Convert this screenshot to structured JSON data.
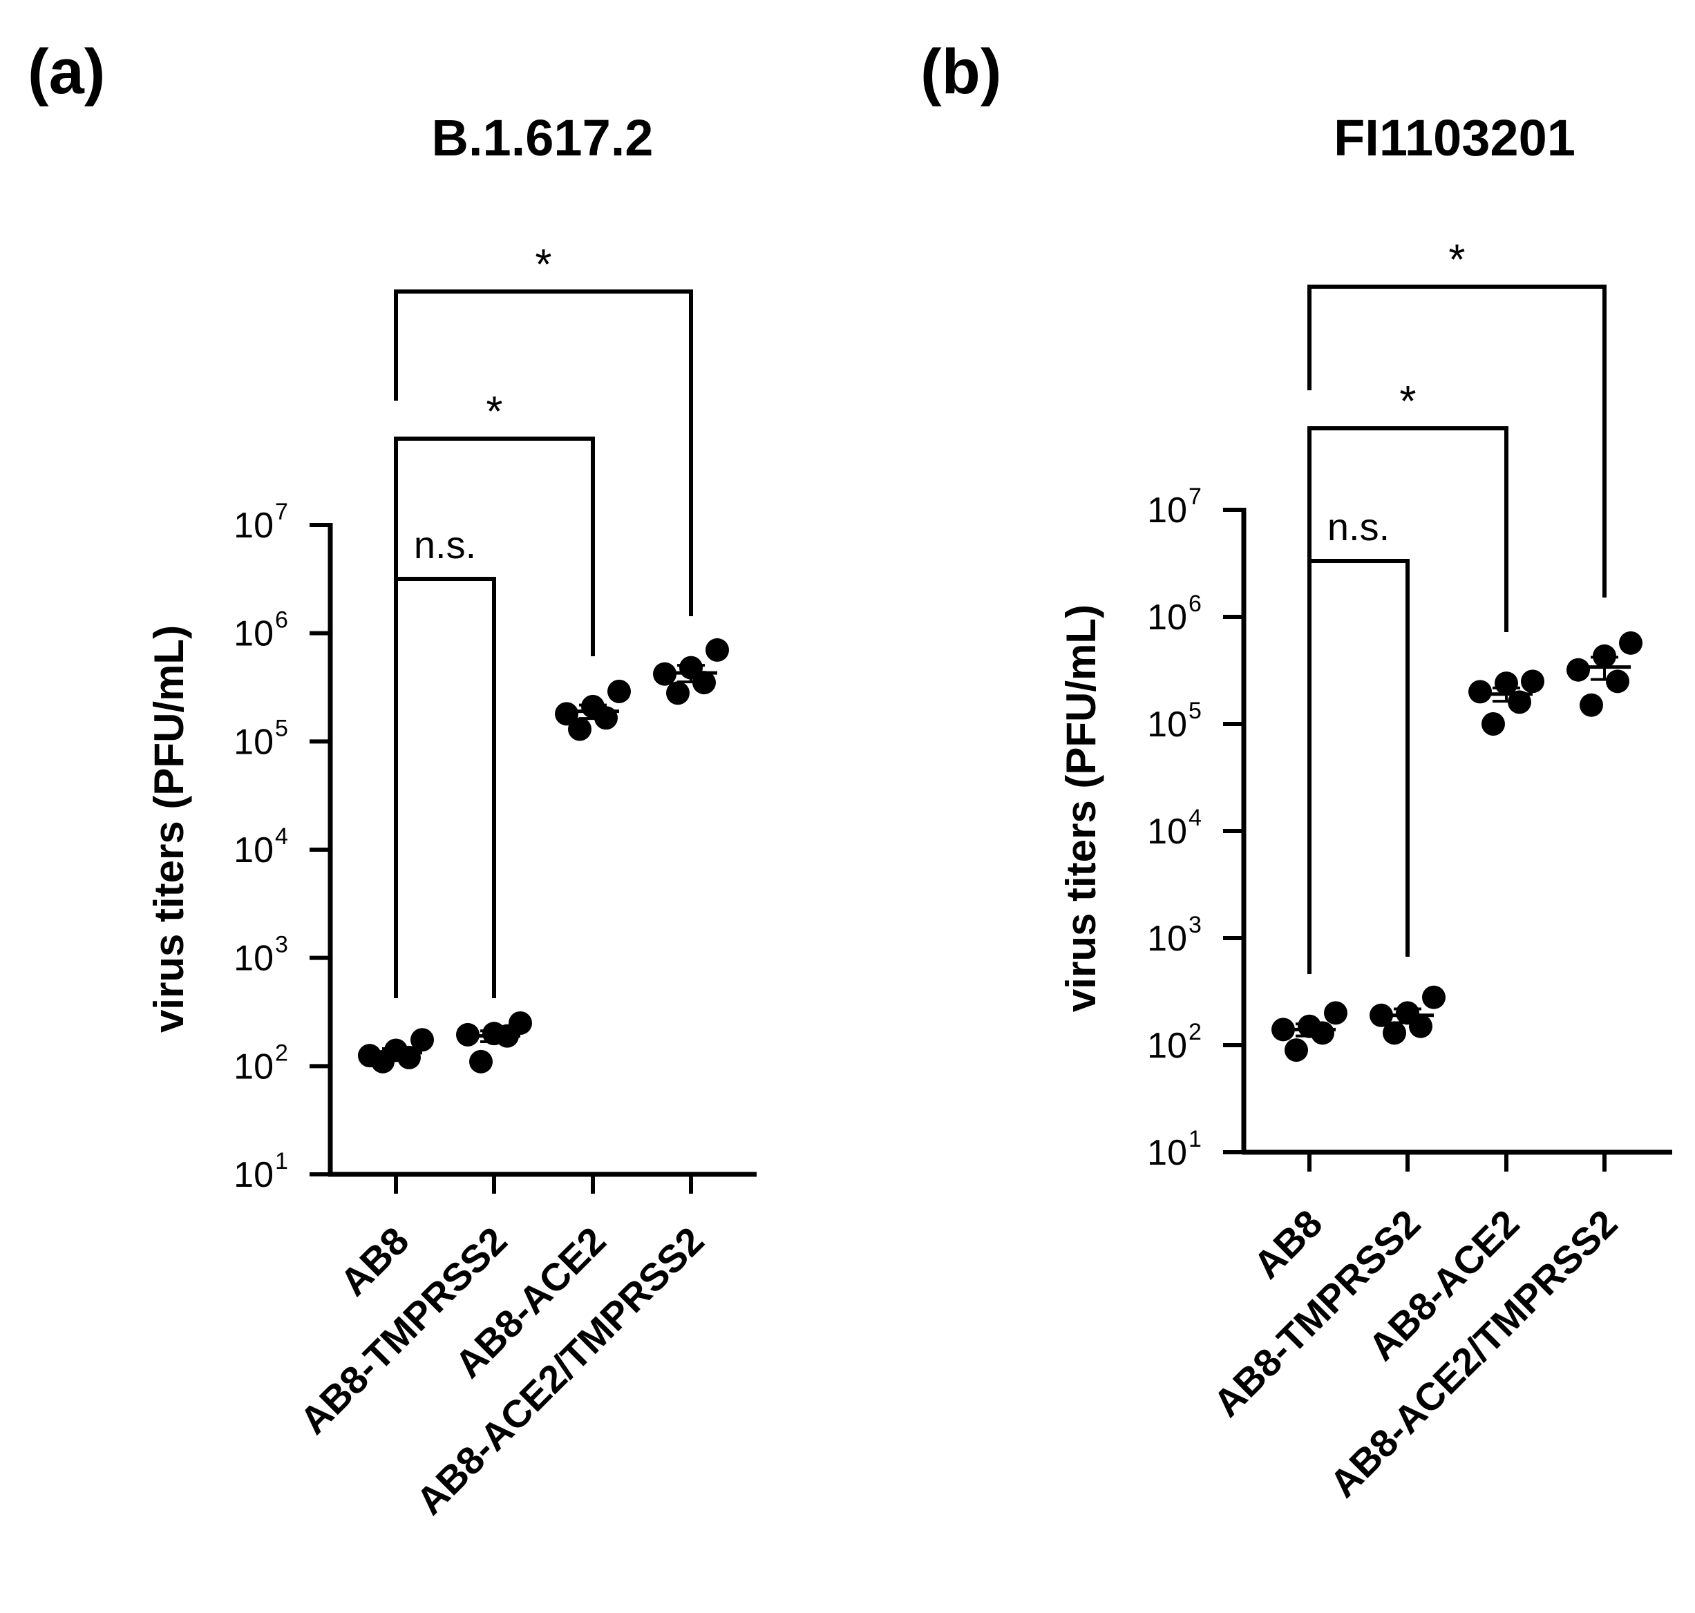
{
  "chart_data": [
    {
      "type": "scatter",
      "panel_label": "(a)",
      "title": "B.1.617.2",
      "ylabel": "virus titers (PFU/mL)",
      "yscale": "log",
      "ylim": [
        10,
        10000000
      ],
      "yticks": [
        {
          "base": "10",
          "exp": "1"
        },
        {
          "base": "10",
          "exp": "2"
        },
        {
          "base": "10",
          "exp": "3"
        },
        {
          "base": "10",
          "exp": "4"
        },
        {
          "base": "10",
          "exp": "5"
        },
        {
          "base": "10",
          "exp": "6"
        },
        {
          "base": "10",
          "exp": "7"
        }
      ],
      "categories": [
        "AB8",
        "AB8-TMPRSS2",
        "AB8-ACE2",
        "AB8-ACE2/TMPRSS2"
      ],
      "points": [
        [
          110,
          120,
          125,
          140,
          175
        ],
        [
          110,
          190,
          195,
          200,
          250
        ],
        [
          130000,
          165000,
          180000,
          210000,
          290000
        ],
        [
          280000,
          350000,
          420000,
          480000,
          700000
        ]
      ],
      "mean": [
        133,
        190,
        190000,
        430000
      ],
      "sem": [
        12,
        22,
        27000,
        75000
      ],
      "comparisons": [
        {
          "from": 0,
          "to": 1,
          "label": "n.s."
        },
        {
          "from": 0,
          "to": 2,
          "label": "*"
        },
        {
          "from": 0,
          "to": 3,
          "label": "*"
        }
      ]
    },
    {
      "type": "scatter",
      "panel_label": "(b)",
      "title": "FI1103201",
      "ylabel": "virus titers (PFU/mL)",
      "yscale": "log",
      "ylim": [
        10,
        10000000
      ],
      "yticks": [
        {
          "base": "10",
          "exp": "1"
        },
        {
          "base": "10",
          "exp": "2"
        },
        {
          "base": "10",
          "exp": "3"
        },
        {
          "base": "10",
          "exp": "4"
        },
        {
          "base": "10",
          "exp": "5"
        },
        {
          "base": "10",
          "exp": "6"
        },
        {
          "base": "10",
          "exp": "7"
        }
      ],
      "categories": [
        "AB8",
        "AB8-TMPRSS2",
        "AB8-ACE2",
        "AB8-ACE2/TMPRSS2"
      ],
      "points": [
        [
          90,
          130,
          140,
          150,
          200
        ],
        [
          130,
          150,
          190,
          200,
          280
        ],
        [
          100000,
          160000,
          200000,
          240000,
          250000
        ],
        [
          150000,
          250000,
          320000,
          430000,
          570000
        ]
      ],
      "mean": [
        140,
        190,
        190000,
        340000
      ],
      "sem": [
        18,
        28,
        27000,
        80000
      ],
      "comparisons": [
        {
          "from": 0,
          "to": 1,
          "label": "n.s."
        },
        {
          "from": 0,
          "to": 2,
          "label": "*"
        },
        {
          "from": 0,
          "to": 3,
          "label": "*"
        }
      ]
    }
  ]
}
